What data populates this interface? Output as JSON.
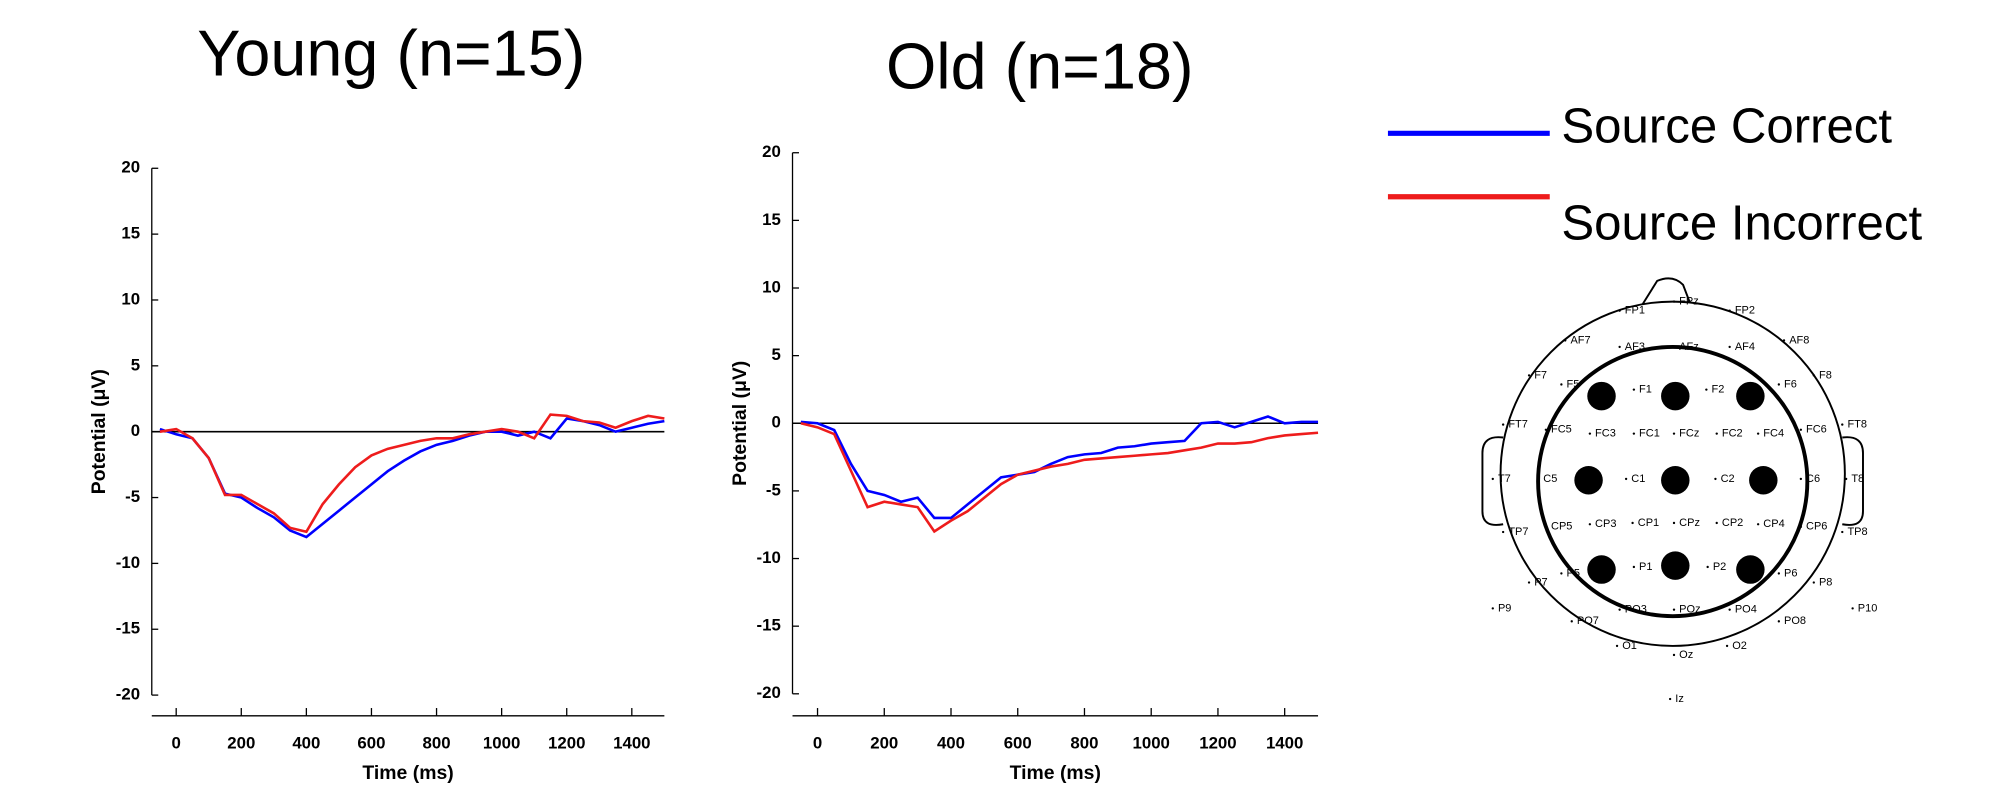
{
  "chart_data": [
    {
      "type": "line",
      "title": "Young (n=15)",
      "x_label": "Time (ms)",
      "y_label": "Potential (μV)",
      "x": [
        -50,
        0,
        50,
        100,
        150,
        200,
        250,
        300,
        350,
        400,
        450,
        500,
        550,
        600,
        650,
        700,
        750,
        800,
        850,
        900,
        950,
        1000,
        1050,
        1100,
        1150,
        1200,
        1250,
        1300,
        1350,
        1400,
        1450,
        1500
      ],
      "series": [
        {
          "name": "Source Correct",
          "color": "#0000ff",
          "values": [
            0.2,
            -0.2,
            -0.5,
            -2,
            -4.7,
            -5,
            -5.8,
            -6.5,
            -7.5,
            -8,
            -7,
            -6,
            -5,
            -4,
            -3,
            -2.2,
            -1.5,
            -1,
            -0.7,
            -0.3,
            0,
            0,
            -0.3,
            0,
            -0.5,
            1,
            0.8,
            0.5,
            0,
            0.3,
            0.6,
            0.8
          ]
        },
        {
          "name": "Source Incorrect",
          "color": "#ee1c1c",
          "values": [
            0,
            0.2,
            -0.5,
            -2,
            -4.8,
            -4.8,
            -5.5,
            -6.2,
            -7.3,
            -7.6,
            -5.5,
            -4,
            -2.7,
            -1.8,
            -1.3,
            -1,
            -0.7,
            -0.5,
            -0.5,
            -0.2,
            0,
            0.2,
            0,
            -0.5,
            1.3,
            1.2,
            0.8,
            0.7,
            0.3,
            0.8,
            1.2,
            1
          ]
        }
      ],
      "xlim": [
        -75,
        1500
      ],
      "ylim": [
        -20,
        20
      ],
      "xticks": [
        0,
        200,
        400,
        600,
        800,
        1000,
        1200,
        1400
      ],
      "yticks": [
        -20,
        -15,
        -10,
        -5,
        0,
        5,
        10,
        15,
        20
      ],
      "zero_line": true
    },
    {
      "type": "line",
      "title": "Old (n=18)",
      "x_label": "Time (ms)",
      "y_label": "Potential (μV)",
      "x": [
        -50,
        0,
        50,
        100,
        150,
        200,
        250,
        300,
        350,
        400,
        450,
        500,
        550,
        600,
        650,
        700,
        750,
        800,
        850,
        900,
        950,
        1000,
        1050,
        1100,
        1150,
        1200,
        1250,
        1300,
        1350,
        1400,
        1450,
        1500
      ],
      "series": [
        {
          "color": "#0000ff",
          "values": [
            0.1,
            0,
            -0.5,
            -3,
            -5,
            -5.3,
            -5.8,
            -5.5,
            -7,
            -7,
            -6,
            -5,
            -4,
            -3.8,
            -3.6,
            -3,
            -2.5,
            -2.3,
            -2.2,
            -1.8,
            -1.7,
            -1.5,
            -1.4,
            -1.3,
            0,
            0.1,
            -0.3,
            0.1,
            0.5,
            0,
            0.1,
            0.1
          ]
        },
        {
          "color": "#ee1c1c",
          "values": [
            0,
            -0.3,
            -0.8,
            -3.5,
            -6.2,
            -5.8,
            -6,
            -6.2,
            -8,
            -7.2,
            -6.5,
            -5.5,
            -4.5,
            -3.8,
            -3.5,
            -3.2,
            -3,
            -2.7,
            -2.6,
            -2.5,
            -2.4,
            -2.3,
            -2.2,
            -2,
            -1.8,
            -1.5,
            -1.5,
            -1.4,
            -1.1,
            -0.9,
            -0.8,
            -0.7
          ]
        }
      ],
      "xlim": [
        -75,
        1500
      ],
      "ylim": [
        -20,
        20
      ],
      "xticks": [
        0,
        200,
        400,
        600,
        800,
        1000,
        1200,
        1400
      ],
      "yticks": [
        -20,
        -15,
        -10,
        -5,
        0,
        5,
        10,
        15,
        20
      ],
      "zero_line": true
    }
  ],
  "electrode_map": {
    "labels": [
      "FP1",
      "FPz",
      "FP2",
      "AF7",
      "AF3",
      "AFz",
      "AF4",
      "AF8",
      "F7",
      "F5",
      "F1",
      "F2",
      "F6",
      "F8",
      "FT7",
      "FC5",
      "FC3",
      "FC1",
      "FCz",
      "FC2",
      "FC4",
      "FC6",
      "FT8",
      "T7",
      "C5",
      "C1",
      "C2",
      "C6",
      "T8",
      "TP7",
      "CP5",
      "CP3",
      "CP1",
      "CPz",
      "CP2",
      "CP4",
      "CP6",
      "TP8",
      "P7",
      "P5",
      "P1",
      "P2",
      "P6",
      "P8",
      "P9",
      "P10",
      "PO7",
      "PO3",
      "POz",
      "PO4",
      "PO8",
      "O1",
      "Oz",
      "O2",
      "Iz"
    ]
  }
}
